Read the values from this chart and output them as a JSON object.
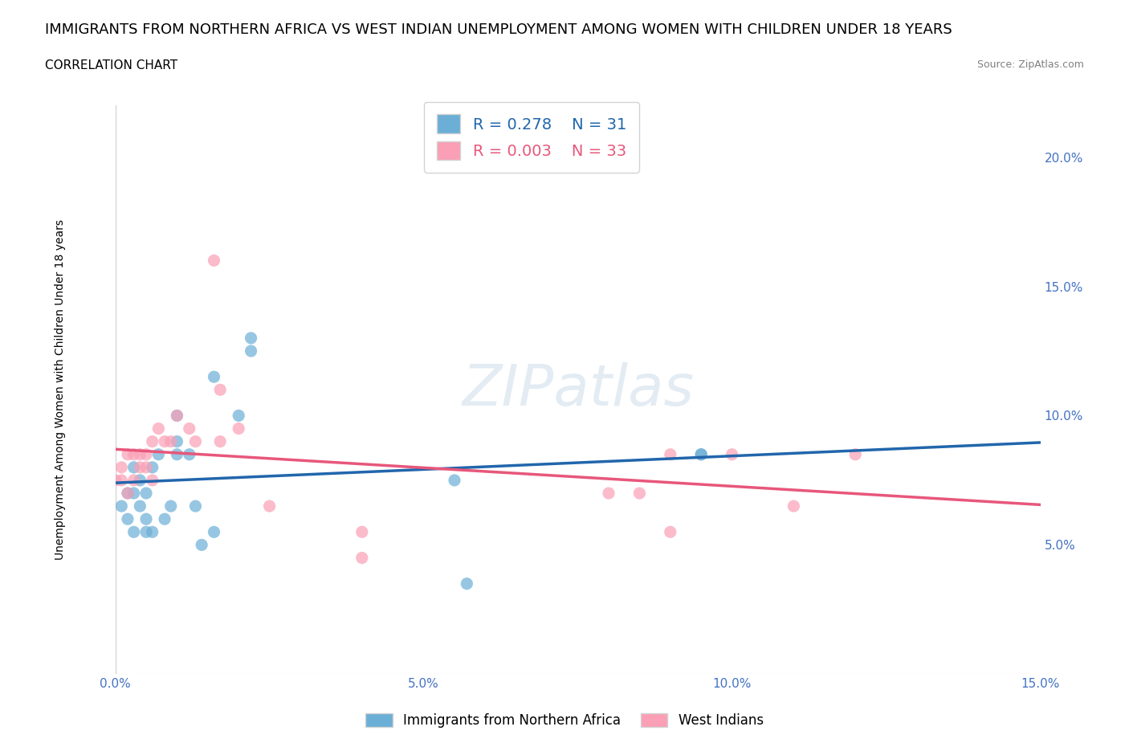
{
  "title": "IMMIGRANTS FROM NORTHERN AFRICA VS WEST INDIAN UNEMPLOYMENT AMONG WOMEN WITH CHILDREN UNDER 18 YEARS",
  "subtitle": "CORRELATION CHART",
  "source": "Source: ZipAtlas.com",
  "xlabel": "",
  "ylabel": "Unemployment Among Women with Children Under 18 years",
  "xlim": [
    0.0,
    0.15
  ],
  "ylim": [
    0.0,
    0.22
  ],
  "xticks": [
    0.0,
    0.05,
    0.1,
    0.15
  ],
  "yticks": [
    0.05,
    0.1,
    0.15,
    0.2
  ],
  "xticklabels": [
    "0.0%",
    "5.0%",
    "10.0%",
    "15.0%"
  ],
  "yticklabels": [
    "5.0%",
    "10.0%",
    "15.0%",
    "20.0%"
  ],
  "blue_color": "#6baed6",
  "pink_color": "#fa9fb5",
  "blue_line_color": "#2166ac",
  "pink_line_color": "#e8577a",
  "blue_R": 0.278,
  "blue_N": 31,
  "pink_R": 0.003,
  "pink_N": 33,
  "legend_label_blue": "Immigrants from Northern Africa",
  "legend_label_pink": "West Indians",
  "watermark": "ZIPatlas",
  "blue_scatter_x": [
    0.001,
    0.002,
    0.002,
    0.003,
    0.003,
    0.003,
    0.004,
    0.004,
    0.005,
    0.005,
    0.005,
    0.006,
    0.006,
    0.007,
    0.008,
    0.009,
    0.01,
    0.01,
    0.01,
    0.012,
    0.013,
    0.014,
    0.016,
    0.016,
    0.02,
    0.022,
    0.022,
    0.055,
    0.057,
    0.095,
    0.095
  ],
  "blue_scatter_y": [
    0.065,
    0.06,
    0.07,
    0.055,
    0.07,
    0.08,
    0.065,
    0.075,
    0.055,
    0.06,
    0.07,
    0.055,
    0.08,
    0.085,
    0.06,
    0.065,
    0.085,
    0.09,
    0.1,
    0.085,
    0.065,
    0.05,
    0.115,
    0.055,
    0.1,
    0.13,
    0.125,
    0.075,
    0.035,
    0.085,
    0.085
  ],
  "pink_scatter_x": [
    0.0,
    0.001,
    0.001,
    0.002,
    0.002,
    0.003,
    0.003,
    0.004,
    0.004,
    0.005,
    0.005,
    0.006,
    0.006,
    0.007,
    0.008,
    0.009,
    0.01,
    0.012,
    0.013,
    0.016,
    0.017,
    0.017,
    0.02,
    0.025,
    0.04,
    0.04,
    0.08,
    0.085,
    0.09,
    0.09,
    0.1,
    0.11,
    0.12
  ],
  "pink_scatter_y": [
    0.075,
    0.075,
    0.08,
    0.07,
    0.085,
    0.075,
    0.085,
    0.085,
    0.08,
    0.08,
    0.085,
    0.075,
    0.09,
    0.095,
    0.09,
    0.09,
    0.1,
    0.095,
    0.09,
    0.16,
    0.11,
    0.09,
    0.095,
    0.065,
    0.055,
    0.045,
    0.07,
    0.07,
    0.085,
    0.055,
    0.085,
    0.065,
    0.085
  ],
  "background_color": "#ffffff",
  "grid_color": "#cccccc",
  "tick_color": "#4472c4",
  "axis_color": "#cccccc"
}
